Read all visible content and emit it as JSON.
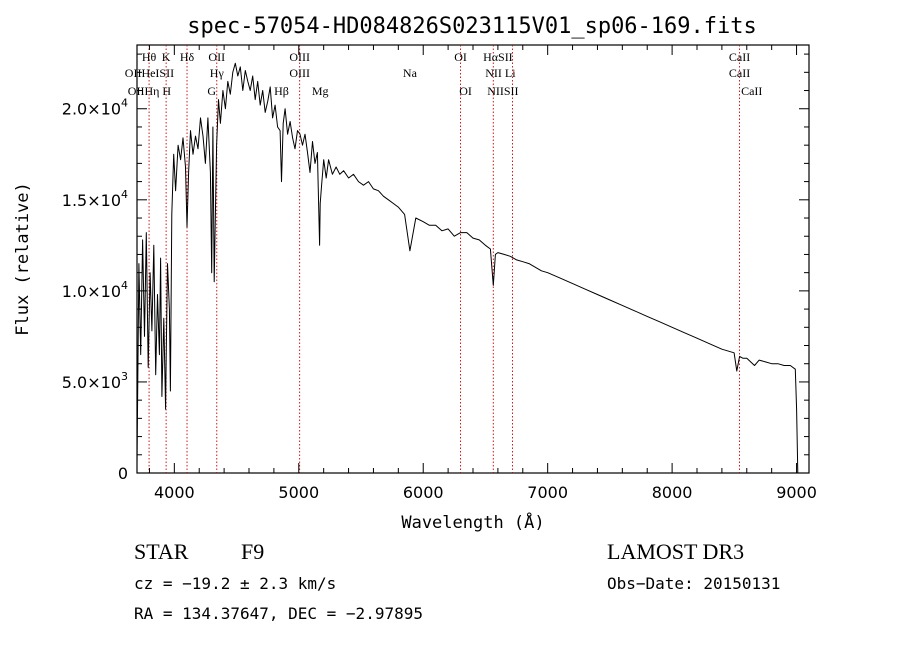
{
  "chart_data": {
    "type": "line",
    "title": "spec-57054-HD084826S023115V01_sp06-169.fits",
    "xlabel": "Wavelength (Å)",
    "ylabel": "Flux (relative)",
    "xlim": [
      3700,
      9100
    ],
    "ylim": [
      0,
      23500
    ],
    "xticks": [
      4000,
      5000,
      6000,
      7000,
      8000,
      9000
    ],
    "xtick_labels": [
      "4000",
      "5000",
      "6000",
      "7000",
      "8000",
      "9000"
    ],
    "yticks": [
      0,
      5000,
      10000,
      15000,
      20000
    ],
    "ytick_labels": [
      "0",
      "5.0×10",
      "1.0×10",
      "1.5×10",
      "2.0×10"
    ],
    "ytick_exponents": [
      "",
      "3",
      "4",
      "4",
      "4"
    ],
    "series": [
      {
        "name": "spectrum",
        "x": [
          3700,
          3715,
          3730,
          3745,
          3760,
          3775,
          3790,
          3805,
          3820,
          3835,
          3850,
          3865,
          3880,
          3890,
          3900,
          3915,
          3930,
          3934,
          3945,
          3960,
          3968,
          3980,
          3995,
          4010,
          4030,
          4050,
          4070,
          4090,
          4102,
          4115,
          4130,
          4150,
          4170,
          4190,
          4210,
          4230,
          4250,
          4270,
          4290,
          4300,
          4310,
          4320,
          4340,
          4355,
          4370,
          4390,
          4410,
          4430,
          4450,
          4470,
          4490,
          4510,
          4530,
          4550,
          4570,
          4590,
          4610,
          4630,
          4650,
          4670,
          4690,
          4710,
          4730,
          4750,
          4770,
          4790,
          4810,
          4830,
          4850,
          4861,
          4875,
          4890,
          4910,
          4930,
          4950,
          4970,
          4990,
          5010,
          5030,
          5050,
          5070,
          5090,
          5110,
          5130,
          5150,
          5167,
          5172,
          5183,
          5200,
          5220,
          5240,
          5270,
          5300,
          5330,
          5360,
          5400,
          5440,
          5480,
          5520,
          5560,
          5600,
          5640,
          5680,
          5720,
          5760,
          5800,
          5850,
          5893,
          5940,
          6000,
          6050,
          6100,
          6150,
          6200,
          6250,
          6300,
          6350,
          6400,
          6450,
          6500,
          6540,
          6563,
          6580,
          6600,
          6650,
          6700,
          6750,
          6800,
          6850,
          6900,
          6950,
          7000,
          7100,
          7200,
          7300,
          7400,
          7500,
          7600,
          7700,
          7800,
          7900,
          8000,
          8100,
          8200,
          8300,
          8400,
          8498,
          8520,
          8542,
          8570,
          8600,
          8662,
          8700,
          8750,
          8800,
          8850,
          8900,
          8950,
          8990,
          9000,
          9010
        ],
        "y": [
          500,
          11500,
          6500,
          12800,
          7500,
          13200,
          5800,
          11000,
          7800,
          12500,
          5400,
          9800,
          6500,
          11800,
          4200,
          8500,
          3500,
          6000,
          11500,
          9000,
          4500,
          14200,
          17500,
          15500,
          18000,
          17200,
          18400,
          16800,
          13500,
          16500,
          18800,
          17500,
          18500,
          17800,
          19500,
          18500,
          17000,
          19500,
          16500,
          11000,
          19000,
          10500,
          18000,
          20500,
          19200,
          21000,
          20000,
          21500,
          20800,
          22000,
          22500,
          21800,
          22300,
          21000,
          22100,
          21500,
          21000,
          21800,
          20500,
          21500,
          20200,
          21000,
          19800,
          20400,
          21200,
          19500,
          20200,
          19000,
          18800,
          16000,
          19200,
          20000,
          18600,
          19300,
          18400,
          17800,
          18800,
          18600,
          18000,
          18600,
          17600,
          16500,
          18200,
          17000,
          17600,
          12500,
          14800,
          15800,
          17200,
          16200,
          17200,
          16400,
          16800,
          16400,
          16600,
          16200,
          16400,
          16000,
          15800,
          16000,
          15600,
          15500,
          15200,
          15000,
          14800,
          14600,
          14200,
          12200,
          14000,
          13800,
          13600,
          13600,
          13300,
          13400,
          13000,
          13200,
          13200,
          12900,
          12800,
          12500,
          12300,
          10300,
          12000,
          12100,
          12000,
          11900,
          11700,
          11600,
          11500,
          11300,
          11100,
          11000,
          10700,
          10400,
          10100,
          9800,
          9500,
          9200,
          8900,
          8600,
          8300,
          8000,
          7700,
          7400,
          7100,
          6800,
          6600,
          5600,
          6400,
          6300,
          6300,
          5900,
          6200,
          6100,
          6000,
          6000,
          5900,
          5900,
          5700,
          3500,
          0
        ]
      }
    ],
    "lines": [
      {
        "name": "Hθ",
        "x": 3797
      },
      {
        "name": "K",
        "x": 3934
      },
      {
        "name": "Hδ",
        "x": 4102
      },
      {
        "name": "OII",
        "x": 4341
      },
      {
        "name": "OIII",
        "x": 5007
      },
      {
        "name": "OI",
        "x": 6300
      },
      {
        "name": "Hα",
        "x": 6563
      },
      {
        "name": "SII",
        "x": 6717
      },
      {
        "name": "CaII",
        "x": 8542
      }
    ],
    "line_labels": [
      [
        "Hθ",
        "K",
        "Hδ",
        "OII",
        "OIII",
        "OI",
        "HαSII",
        "CaII"
      ],
      [
        "OIIHeISII",
        "Hγ",
        "OIII",
        "Na",
        "NII Li",
        "CaII"
      ],
      [
        "OIIHη H",
        "G",
        "Hβ",
        "Mg",
        "OI",
        "NIISII",
        "CaII"
      ]
    ],
    "grid": false
  },
  "info": {
    "class_label": "STAR",
    "subclass": "F9",
    "survey": "LAMOST DR3",
    "cz": "cz = −19.2 ± 2.3 km/s",
    "obs_date": "Obs−Date: 20150131",
    "radec": "RA = 134.37647, DEC =  −2.97895"
  },
  "colors": {
    "spectrum": "#000000",
    "line_marker": "#cc0000",
    "background": "#ffffff"
  }
}
